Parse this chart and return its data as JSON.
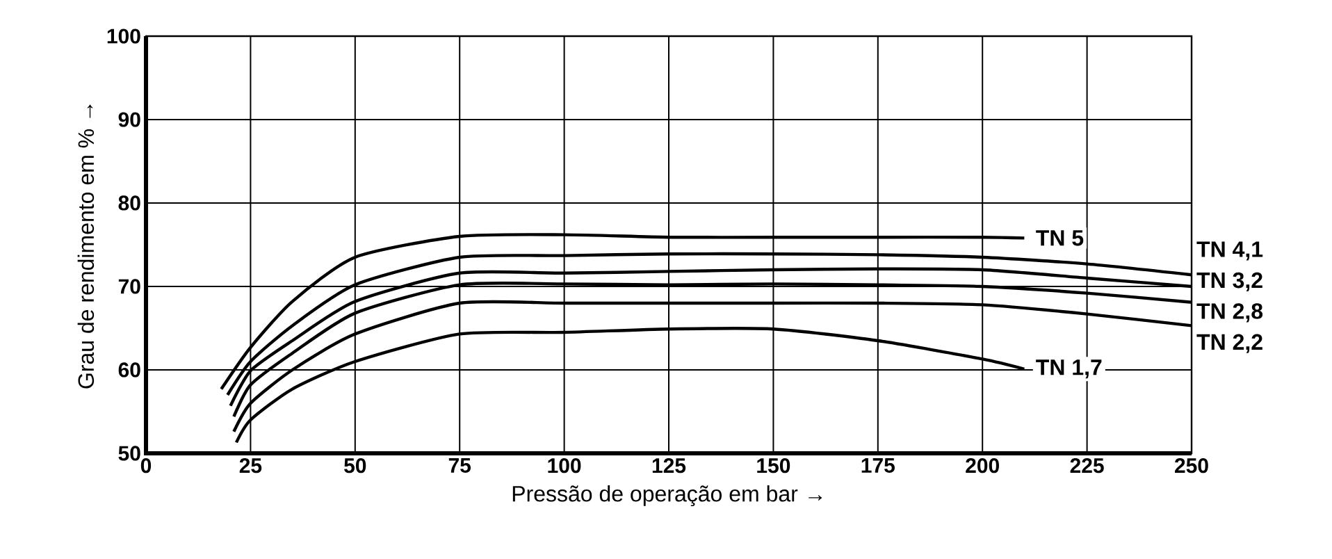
{
  "chart_data": {
    "type": "line",
    "xlabel": "Pressão de operação em bar →",
    "ylabel": "Grau de rendimento em % →",
    "xlim": [
      0,
      250
    ],
    "ylim": [
      50,
      100
    ],
    "xticks": [
      0,
      25,
      50,
      75,
      100,
      125,
      150,
      175,
      200,
      225,
      250
    ],
    "yticks": [
      50,
      60,
      70,
      80,
      90,
      100
    ],
    "grid": true,
    "series": [
      {
        "name": "TN 5",
        "color": "#000000",
        "x": [
          18,
          25,
          35,
          50,
          75,
          100,
          125,
          150,
          175,
          200,
          210
        ],
        "values": [
          57.7,
          62.7,
          68.2,
          73.5,
          76.0,
          76.2,
          75.9,
          75.9,
          75.9,
          75.9,
          75.8
        ]
      },
      {
        "name": "TN 4,1",
        "color": "#000000",
        "x": [
          19.5,
          25,
          35,
          50,
          75,
          100,
          125,
          150,
          175,
          200,
          225,
          250
        ],
        "values": [
          57,
          61,
          65.3,
          70.2,
          73.5,
          73.7,
          73.9,
          73.9,
          73.8,
          73.5,
          72.7,
          71.4
        ]
      },
      {
        "name": "TN 3,2",
        "color": "#000000",
        "x": [
          20.2,
          25,
          35,
          50,
          75,
          100,
          125,
          150,
          175,
          200,
          225,
          250
        ],
        "values": [
          55.7,
          59.9,
          63.5,
          68.2,
          71.6,
          71.6,
          71.8,
          72.0,
          72.1,
          72.0,
          71.0,
          70.0
        ]
      },
      {
        "name": "TN 2,8",
        "color": "#000000",
        "x": [
          21,
          25,
          35,
          50,
          75,
          100,
          125,
          150,
          175,
          200,
          225,
          250
        ],
        "values": [
          54.4,
          58.2,
          62,
          66.8,
          70.2,
          70.3,
          70.2,
          70.3,
          70.2,
          70.0,
          69.2,
          68.1
        ]
      },
      {
        "name": "TN 2,2",
        "color": "#000000",
        "x": [
          21,
          25,
          35,
          50,
          75,
          100,
          125,
          150,
          175,
          200,
          225,
          250
        ],
        "values": [
          52.6,
          56,
          60,
          64.3,
          68.0,
          68.0,
          68.0,
          68.0,
          68.0,
          67.8,
          66.7,
          65.3
        ]
      },
      {
        "name": "TN 1,7",
        "color": "#000000",
        "x": [
          21.6,
          25,
          35,
          50,
          75,
          100,
          125,
          150,
          175,
          200,
          210
        ],
        "values": [
          51.3,
          54,
          57.7,
          61,
          64.3,
          64.5,
          64.9,
          64.9,
          63.5,
          61.3,
          60.1
        ]
      }
    ]
  }
}
